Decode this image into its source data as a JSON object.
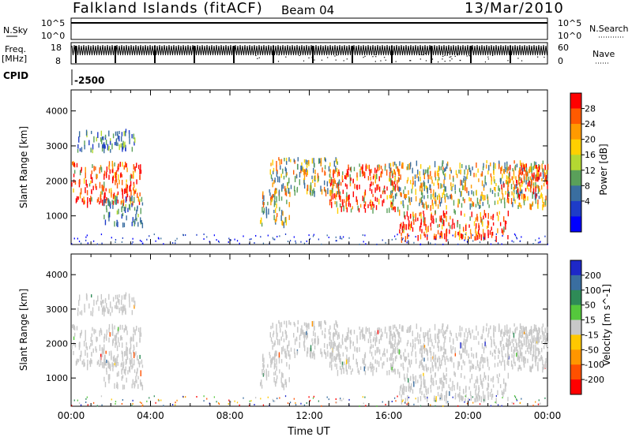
{
  "header": {
    "station": "Falkland Islands (fitACF)",
    "beam": "Beam 04",
    "date": "13/Mar/2010"
  },
  "strip_labels": {
    "nsky": "N.Sky",
    "nsearch": "N.Search",
    "freq_line1": "Freq.",
    "freq_line2": "[MHz]",
    "nave": "Nave",
    "cpid": "CPID",
    "cpid_value": "-2500",
    "nsky_ticks": [
      "10^5",
      "10^0"
    ],
    "nsearch_ticks": [
      "10^5",
      "10^0"
    ],
    "freq_ticks": [
      "18",
      "8"
    ],
    "nave_ticks": [
      "60",
      "0"
    ]
  },
  "chart_data": [
    {
      "type": "heatmap",
      "panel": "power",
      "ylabel": "Slant Range [km]",
      "yticks": [
        1000,
        2000,
        3000,
        4000
      ],
      "ylim": [
        180,
        4600
      ],
      "xlim": [
        0,
        24
      ],
      "colorbar_label": "Power [dB]",
      "colorbar_ticks": [
        "28",
        "24",
        "20",
        "16",
        "12",
        "8",
        "4"
      ],
      "colorbar_colors": [
        "#ff0000",
        "#ff5a00",
        "#ff9a00",
        "#ffd000",
        "#b4d832",
        "#5aa05a",
        "#3a6ea0",
        "#1e3cc8",
        "#0000ff"
      ],
      "regions": [
        {
          "t0": 0.0,
          "t1": 3.5,
          "r0": 1400,
          "r1": 2600,
          "level": "high"
        },
        {
          "t0": 0.3,
          "t1": 3.2,
          "r0": 2900,
          "r1": 3500,
          "level": "low"
        },
        {
          "t0": 1.6,
          "t1": 3.6,
          "r0": 800,
          "r1": 1600,
          "level": "low"
        },
        {
          "t0": 9.5,
          "t1": 11.0,
          "r0": 800,
          "r1": 1800,
          "level": "mid"
        },
        {
          "t0": 10.0,
          "t1": 13.5,
          "r0": 1700,
          "r1": 2700,
          "level": "mid"
        },
        {
          "t0": 13.0,
          "t1": 16.5,
          "r0": 1200,
          "r1": 2500,
          "level": "high"
        },
        {
          "t0": 16.5,
          "t1": 22.0,
          "r0": 400,
          "r1": 1200,
          "level": "high"
        },
        {
          "t0": 16.0,
          "t1": 24.0,
          "r0": 1300,
          "r1": 2600,
          "level": "mid"
        },
        {
          "t0": 21.5,
          "t1": 24.0,
          "r0": 1600,
          "r1": 2500,
          "level": "high"
        }
      ]
    },
    {
      "type": "heatmap",
      "panel": "velocity",
      "ylabel": "Slant Range [km]",
      "xlabel": "Time UT",
      "yticks": [
        1000,
        2000,
        3000,
        4000
      ],
      "ylim": [
        180,
        4600
      ],
      "xlim": [
        0,
        24
      ],
      "xticks": [
        "00:00",
        "04:00",
        "08:00",
        "12:00",
        "16:00",
        "20:00",
        "00:00"
      ],
      "colorbar_label": "Velocity [m s^-1]",
      "colorbar_ticks": [
        "200",
        "100",
        "50",
        "15",
        "-15",
        "-50",
        "-100",
        "-200"
      ],
      "colorbar_colors": [
        "#1e28c8",
        "#3a6ea0",
        "#2e8b57",
        "#55c83c",
        "#c8c8c8",
        "#ffc800",
        "#ff9600",
        "#ff5000",
        "#ff0000"
      ]
    }
  ]
}
